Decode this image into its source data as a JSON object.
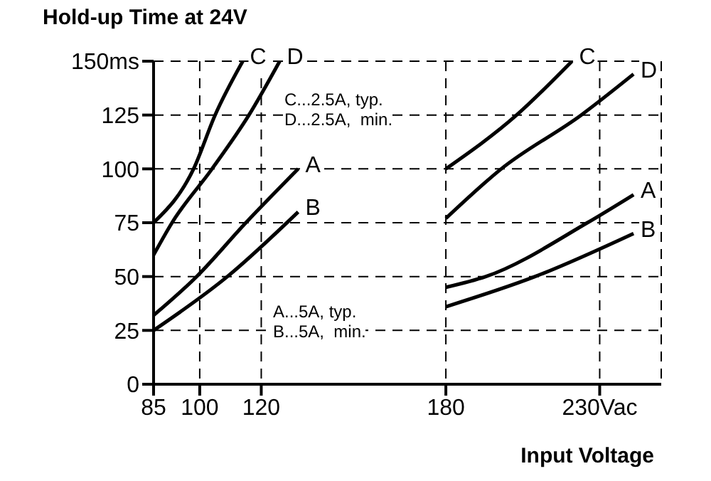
{
  "chart_data": {
    "type": "line",
    "title": "Hold-up Time at 24V",
    "xlabel": "Input Voltage",
    "xlim": [
      85,
      250
    ],
    "xticks": [
      85,
      100,
      120,
      180,
      {
        "value": 230,
        "label": "230Vac"
      }
    ],
    "ylim": [
      0,
      150
    ],
    "yticks": [
      0,
      25,
      50,
      75,
      100,
      125,
      {
        "value": 150,
        "label": "150ms"
      }
    ],
    "grid": true,
    "marker": "none",
    "line_style": "solid",
    "annotations": [
      "C...2.5A, typ.",
      "D...2.5A,  min.",
      "A...5A, typ.",
      "B...5A,  min."
    ],
    "series": [
      {
        "name": "C",
        "color": "#000000",
        "x": [
          85,
          98,
          105,
          114,
          150,
          180,
          203,
          221
        ],
        "values": [
          75,
          100,
          125,
          150,
          null,
          100,
          125,
          150
        ]
      },
      {
        "name": "D",
        "color": "#000000",
        "x": [
          85,
          91,
          104,
          116,
          126,
          150,
          180,
          198,
          224,
          241
        ],
        "values": [
          60,
          75,
          100,
          125,
          150,
          null,
          77,
          100,
          125,
          144
        ]
      },
      {
        "name": "A",
        "color": "#000000",
        "x": [
          85,
          99,
          115,
          132,
          150,
          180,
          193,
          226,
          241
        ],
        "values": [
          32,
          50,
          75,
          100,
          null,
          45,
          50,
          75,
          88
        ]
      },
      {
        "name": "B",
        "color": "#000000",
        "x": [
          85,
          109,
          132,
          150,
          180,
          209,
          241
        ],
        "values": [
          25,
          50,
          80,
          null,
          36,
          50,
          70
        ]
      }
    ]
  }
}
